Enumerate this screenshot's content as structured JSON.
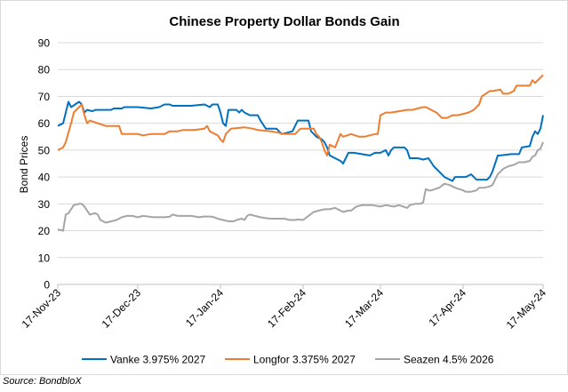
{
  "source_label": "Source: BondbloX",
  "chart_data": {
    "type": "line",
    "title": "Chinese Property Dollar Bonds Gain",
    "xlabel": "",
    "ylabel": "Bond Prices",
    "ylim": [
      0,
      90
    ],
    "yticks": [
      0,
      10,
      20,
      30,
      40,
      50,
      60,
      70,
      80,
      90
    ],
    "xlim": [
      0,
      182
    ],
    "xticks": [
      {
        "label": "17-Nov-23",
        "day": 0
      },
      {
        "label": "17-Dec-23",
        "day": 30
      },
      {
        "label": "17-Jan-24",
        "day": 61
      },
      {
        "label": "17-Feb-24",
        "day": 92
      },
      {
        "label": "17-Mar-24",
        "day": 121
      },
      {
        "label": "17-Apr-24",
        "day": 152
      },
      {
        "label": "17-May-24",
        "day": 182
      }
    ],
    "grid": true,
    "legend_position": "bottom",
    "series": [
      {
        "name": "Vanke 3.975% 2027",
        "color": "#0070c0",
        "points": [
          [
            0,
            59
          ],
          [
            2,
            60
          ],
          [
            4,
            68
          ],
          [
            5,
            66
          ],
          [
            8,
            68
          ],
          [
            9,
            67
          ],
          [
            10,
            64
          ],
          [
            11,
            65
          ],
          [
            13,
            64.5
          ],
          [
            14,
            65
          ],
          [
            20,
            65
          ],
          [
            21,
            65.5
          ],
          [
            24,
            65.5
          ],
          [
            25,
            66
          ],
          [
            30,
            66
          ],
          [
            35,
            65.5
          ],
          [
            38,
            66
          ],
          [
            40,
            67
          ],
          [
            42,
            67
          ],
          [
            43,
            66.5
          ],
          [
            50,
            66.5
          ],
          [
            55,
            67
          ],
          [
            57,
            66
          ],
          [
            58,
            67
          ],
          [
            60,
            67
          ],
          [
            61,
            64
          ],
          [
            62,
            60
          ],
          [
            63,
            59
          ],
          [
            64,
            65
          ],
          [
            67,
            65
          ],
          [
            68,
            64
          ],
          [
            69,
            65
          ],
          [
            70,
            64
          ],
          [
            72,
            63
          ],
          [
            75,
            63
          ],
          [
            76,
            61
          ],
          [
            78,
            58
          ],
          [
            82,
            58
          ],
          [
            84,
            56
          ],
          [
            88,
            57
          ],
          [
            90,
            61
          ],
          [
            94,
            61
          ],
          [
            95,
            57
          ],
          [
            97,
            55
          ],
          [
            99,
            54
          ],
          [
            100,
            53
          ],
          [
            101,
            51
          ],
          [
            102,
            48
          ],
          [
            104,
            47
          ],
          [
            106,
            46
          ],
          [
            107,
            45
          ],
          [
            109,
            49
          ],
          [
            111,
            49
          ],
          [
            117,
            48
          ],
          [
            119,
            49
          ],
          [
            121,
            49
          ],
          [
            123,
            50
          ],
          [
            124,
            48
          ],
          [
            125,
            50
          ],
          [
            126,
            51
          ],
          [
            130,
            51
          ],
          [
            131,
            50
          ],
          [
            132,
            47
          ],
          [
            135,
            47
          ],
          [
            137,
            46.5
          ],
          [
            139,
            47
          ],
          [
            141,
            44
          ],
          [
            143,
            42
          ],
          [
            145,
            40
          ],
          [
            147,
            39
          ],
          [
            148,
            38.5
          ],
          [
            149,
            40
          ],
          [
            153,
            40
          ],
          [
            155,
            41
          ],
          [
            157,
            39
          ],
          [
            161,
            39
          ],
          [
            162,
            40
          ],
          [
            163,
            42
          ],
          [
            165,
            48
          ],
          [
            166,
            48
          ],
          [
            170,
            48.5
          ],
          [
            173,
            48.5
          ],
          [
            174,
            51
          ],
          [
            177,
            51.5
          ],
          [
            178,
            55
          ],
          [
            179,
            57
          ],
          [
            180,
            56
          ],
          [
            181,
            58
          ],
          [
            182,
            63
          ]
        ]
      },
      {
        "name": "Longfor 3.375% 2027",
        "color": "#ed7d31",
        "points": [
          [
            0,
            50
          ],
          [
            2,
            51
          ],
          [
            3,
            53
          ],
          [
            5,
            60
          ],
          [
            6,
            64
          ],
          [
            8,
            66
          ],
          [
            9,
            67
          ],
          [
            10,
            63
          ],
          [
            11,
            60
          ],
          [
            12,
            61
          ],
          [
            15,
            60
          ],
          [
            18,
            59
          ],
          [
            23,
            59
          ],
          [
            24,
            56
          ],
          [
            27,
            56
          ],
          [
            30,
            56
          ],
          [
            32,
            55.5
          ],
          [
            35,
            56
          ],
          [
            40,
            56
          ],
          [
            42,
            57
          ],
          [
            45,
            57
          ],
          [
            47,
            57.5
          ],
          [
            51,
            57.5
          ],
          [
            55,
            58
          ],
          [
            56,
            59
          ],
          [
            57,
            57
          ],
          [
            59,
            56
          ],
          [
            60,
            55.5
          ],
          [
            61,
            54
          ],
          [
            62,
            53
          ],
          [
            63,
            56
          ],
          [
            65,
            58
          ],
          [
            70,
            58.5
          ],
          [
            73,
            58
          ],
          [
            75,
            57.5
          ],
          [
            80,
            57
          ],
          [
            85,
            56
          ],
          [
            89,
            56
          ],
          [
            90,
            57
          ],
          [
            91,
            58
          ],
          [
            93,
            58
          ],
          [
            96,
            58
          ],
          [
            97,
            56
          ],
          [
            98,
            55
          ],
          [
            99,
            53
          ],
          [
            100,
            50
          ],
          [
            101,
            48
          ],
          [
            102,
            52
          ],
          [
            104,
            51
          ],
          [
            106,
            56
          ],
          [
            107,
            55
          ],
          [
            110,
            56
          ],
          [
            113,
            55
          ],
          [
            115,
            55
          ],
          [
            117,
            55.5
          ],
          [
            119,
            56
          ],
          [
            120,
            56
          ],
          [
            121,
            63
          ],
          [
            123,
            64
          ],
          [
            125,
            64
          ],
          [
            128,
            64.5
          ],
          [
            131,
            65
          ],
          [
            133,
            65
          ],
          [
            135,
            65.5
          ],
          [
            137,
            66
          ],
          [
            138,
            66
          ],
          [
            140,
            65
          ],
          [
            142,
            64
          ],
          [
            144,
            62
          ],
          [
            146,
            62
          ],
          [
            148,
            63
          ],
          [
            150,
            63
          ],
          [
            152,
            63.5
          ],
          [
            154,
            64
          ],
          [
            156,
            65
          ],
          [
            158,
            67
          ],
          [
            159,
            70
          ],
          [
            162,
            72
          ],
          [
            163,
            72
          ],
          [
            166,
            72.5
          ],
          [
            167,
            71
          ],
          [
            169,
            71
          ],
          [
            171,
            72
          ],
          [
            172,
            74
          ],
          [
            175,
            74
          ],
          [
            177,
            74
          ],
          [
            178,
            76
          ],
          [
            179,
            75
          ],
          [
            181,
            77
          ],
          [
            182,
            78
          ]
        ]
      },
      {
        "name": "Seazen 4.5% 2026",
        "color": "#a5a5a5",
        "points": [
          [
            0,
            20.5
          ],
          [
            2,
            20
          ],
          [
            3,
            26
          ],
          [
            4,
            26.5
          ],
          [
            6,
            29.5
          ],
          [
            8,
            30
          ],
          [
            9,
            30
          ],
          [
            10,
            29
          ],
          [
            12,
            26
          ],
          [
            14,
            26.5
          ],
          [
            15,
            26
          ],
          [
            16,
            24
          ],
          [
            18,
            23
          ],
          [
            20,
            23.5
          ],
          [
            22,
            24
          ],
          [
            24,
            25
          ],
          [
            26,
            25.5
          ],
          [
            28,
            25.5
          ],
          [
            30,
            25
          ],
          [
            32,
            25.5
          ],
          [
            36,
            25
          ],
          [
            40,
            25
          ],
          [
            42,
            25.2
          ],
          [
            43,
            26
          ],
          [
            45,
            25.5
          ],
          [
            50,
            25.5
          ],
          [
            53,
            25
          ],
          [
            55,
            25.3
          ],
          [
            58,
            25.2
          ],
          [
            60,
            24.5
          ],
          [
            62,
            24
          ],
          [
            64,
            23.5
          ],
          [
            66,
            23.5
          ],
          [
            67,
            24
          ],
          [
            69,
            24.5
          ],
          [
            70,
            24
          ],
          [
            71,
            25.5
          ],
          [
            72,
            26
          ],
          [
            74,
            25.5
          ],
          [
            76,
            25
          ],
          [
            78,
            24.7
          ],
          [
            80,
            24.5
          ],
          [
            85,
            24.5
          ],
          [
            87,
            24
          ],
          [
            89,
            24
          ],
          [
            90,
            24.2
          ],
          [
            92,
            24
          ],
          [
            94,
            25.5
          ],
          [
            96,
            27
          ],
          [
            98,
            27.5
          ],
          [
            100,
            28
          ],
          [
            102,
            28
          ],
          [
            104,
            28.5
          ],
          [
            105,
            28
          ],
          [
            107,
            27
          ],
          [
            109,
            27.5
          ],
          [
            110,
            27.5
          ],
          [
            112,
            29
          ],
          [
            114,
            29.5
          ],
          [
            116,
            29.5
          ],
          [
            118,
            29.5
          ],
          [
            121,
            29
          ],
          [
            123,
            29.5
          ],
          [
            126,
            29
          ],
          [
            128,
            29.5
          ],
          [
            131,
            28.5
          ],
          [
            132,
            29.5
          ],
          [
            134,
            30
          ],
          [
            136,
            30
          ],
          [
            137,
            30.5
          ],
          [
            138,
            35.5
          ],
          [
            139,
            35
          ],
          [
            140,
            35
          ],
          [
            143,
            36
          ],
          [
            145,
            37.5
          ],
          [
            147,
            37
          ],
          [
            149,
            36
          ],
          [
            152,
            35
          ],
          [
            153,
            34.5
          ],
          [
            155,
            34.5
          ],
          [
            157,
            35
          ],
          [
            158,
            36
          ],
          [
            160,
            36
          ],
          [
            162,
            36.5
          ],
          [
            163,
            37
          ],
          [
            164,
            39
          ],
          [
            165,
            41
          ],
          [
            167,
            43
          ],
          [
            169,
            44
          ],
          [
            171,
            44.5
          ],
          [
            173,
            45.5
          ],
          [
            175,
            45.5
          ],
          [
            177,
            46
          ],
          [
            178,
            47.5
          ],
          [
            179,
            48
          ],
          [
            180,
            50
          ],
          [
            181,
            50.5
          ],
          [
            182,
            53
          ]
        ]
      }
    ]
  }
}
